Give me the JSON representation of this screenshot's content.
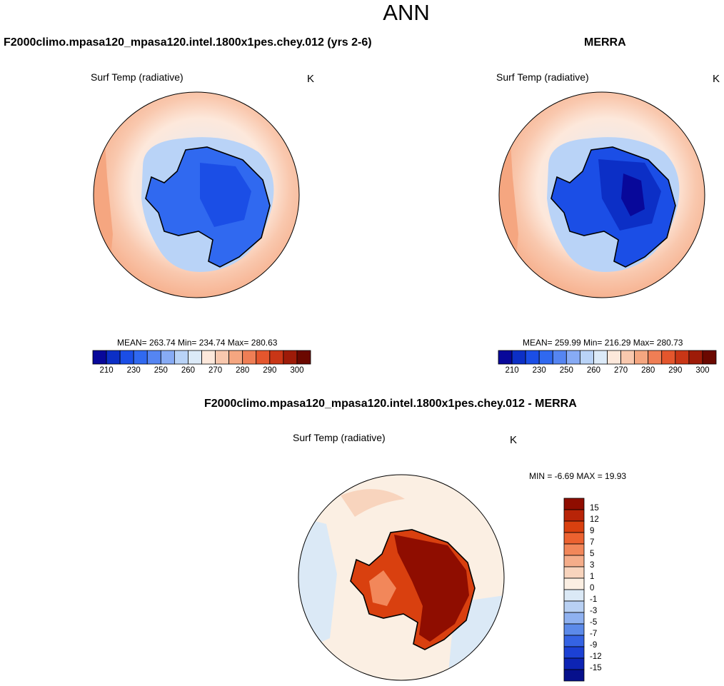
{
  "main_title": "ANN",
  "panels": [
    {
      "case_title": "F2000climo.mpasa120_mpasa120.intel.1800x1pes.chey.012 (yrs 2-6)",
      "variable_label": "Surf Temp (radiative)",
      "units": "K",
      "stats": "MEAN= 263.74  Min= 234.74  Max= 280.63",
      "mean": 263.74,
      "min": 234.74,
      "max": 280.63
    },
    {
      "case_title": "MERRA",
      "variable_label": "Surf Temp (radiative)",
      "units": "K",
      "stats": "MEAN= 259.99  Min= 216.29  Max= 280.73",
      "mean": 259.99,
      "min": 216.29,
      "max": 280.73
    }
  ],
  "colorbar": {
    "colors": [
      "#08089a",
      "#0c2fc6",
      "#1b4ee6",
      "#3069f0",
      "#5585f2",
      "#87abf5",
      "#b9d3f7",
      "#dceaf8",
      "#fde8db",
      "#f9c8ae",
      "#f5a680",
      "#ef7e55",
      "#e4562d",
      "#c93616",
      "#9e1b08",
      "#6b0800"
    ],
    "tick_labels": [
      "210",
      "230",
      "250",
      "260",
      "270",
      "280",
      "290",
      "300"
    ]
  },
  "diff_panel": {
    "case_title": "F2000climo.mpasa120_mpasa120.intel.1800x1pes.chey.012 - MERRA",
    "variable_label": "Surf Temp (radiative)",
    "units": "K",
    "stats": "MIN =  -6.69 MAX =  19.93",
    "min": -6.69,
    "max": 19.93
  },
  "diff_colorbar": {
    "colors": [
      "#8f0d00",
      "#b82408",
      "#d9400f",
      "#ec6230",
      "#f2875a",
      "#f5ad8a",
      "#f8d4bd",
      "#fbefe3",
      "#dbe9f6",
      "#b8d0f3",
      "#8fb1f0",
      "#5c8ae9",
      "#3563e3",
      "#1c41d4",
      "#0d24b4",
      "#06108c"
    ],
    "tick_labels": [
      "15",
      "12",
      "9",
      "7",
      "5",
      "3",
      "1",
      "0",
      "-1",
      "-3",
      "-5",
      "-7",
      "-9",
      "-12",
      "-15"
    ]
  }
}
